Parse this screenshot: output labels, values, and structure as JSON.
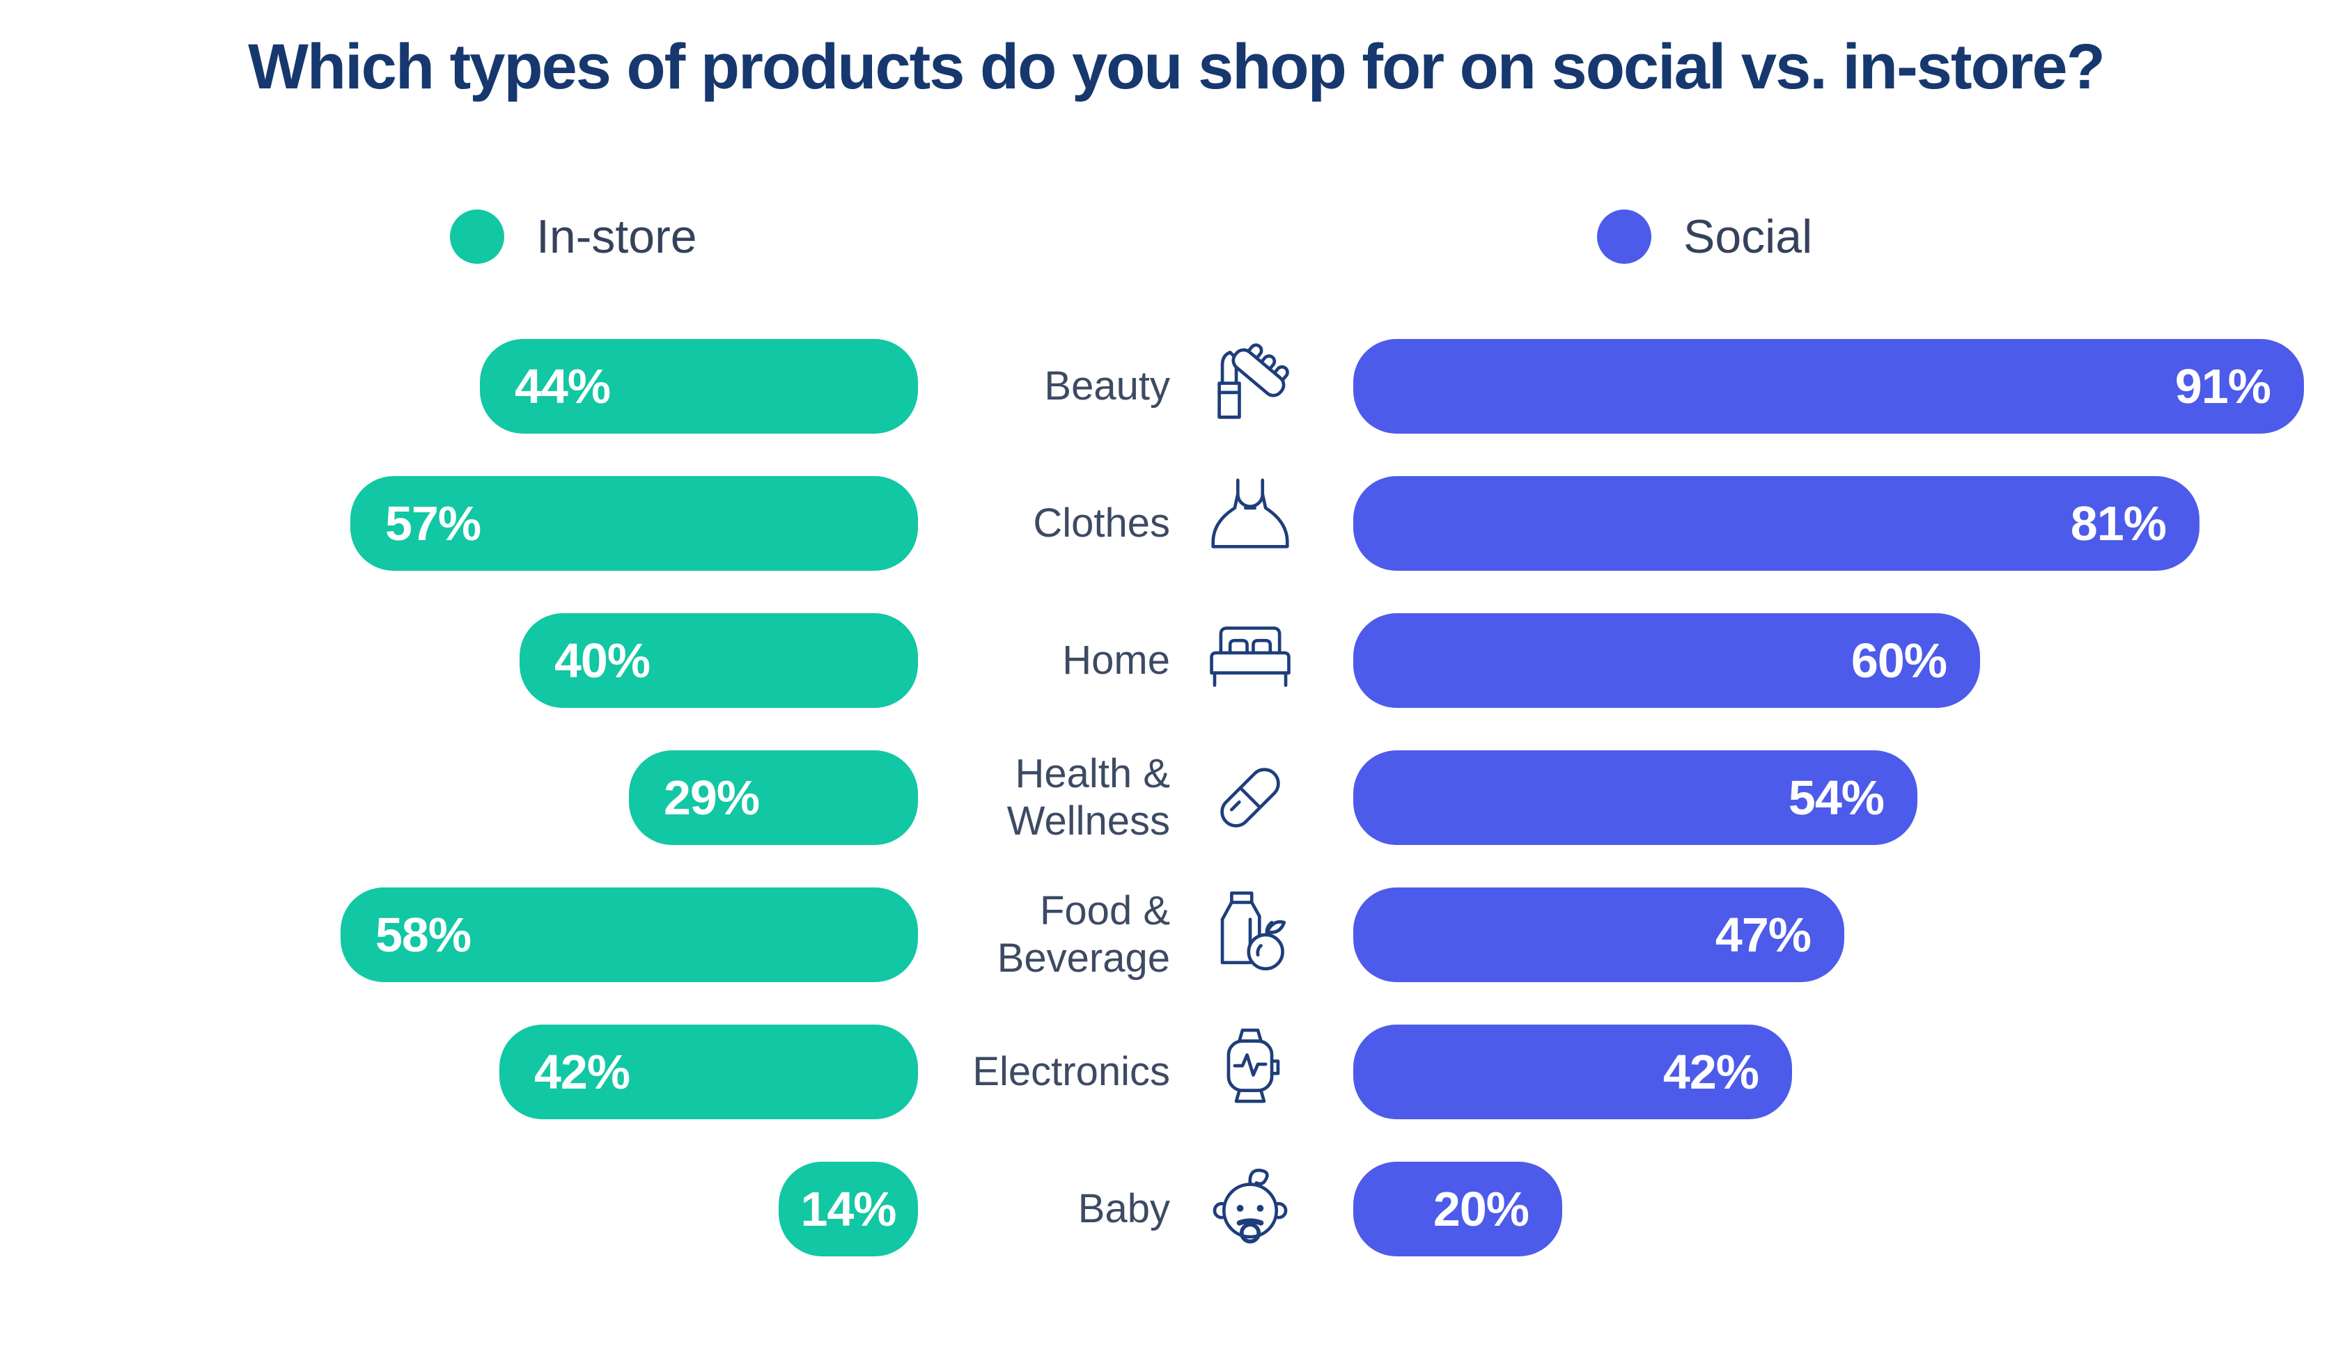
{
  "title": "Which types of products do you shop for on social vs. in-store?",
  "legend": {
    "instore": {
      "label": "In-store",
      "color": "#12C7A3"
    },
    "social": {
      "label": "Social",
      "color": "#4D5BEA"
    }
  },
  "rows": [
    {
      "category": "Beauty",
      "icon": "lipstick-and-comb",
      "instore_label": "44%",
      "social_label": "91%"
    },
    {
      "category": "Clothes",
      "icon": "dress",
      "instore_label": "57%",
      "social_label": "81%"
    },
    {
      "category": "Home",
      "icon": "bed",
      "instore_label": "40%",
      "social_label": "60%"
    },
    {
      "category": "Health & Wellness",
      "icon": "pill-capsule",
      "instore_label": "29%",
      "social_label": "54%"
    },
    {
      "category": "Food & Beverage",
      "icon": "milk-carton-and-apple",
      "instore_label": "58%",
      "social_label": "47%"
    },
    {
      "category": "Electronics",
      "icon": "smartwatch",
      "instore_label": "42%",
      "social_label": "42%"
    },
    {
      "category": "Baby",
      "icon": "baby-face",
      "instore_label": "14%",
      "social_label": "20%"
    }
  ],
  "chart_data": {
    "type": "bar",
    "orientation": "horizontal",
    "layout": "diverging-from-center-labels",
    "title": "Which types of products do you shop for on social vs. in-store?",
    "categories": [
      "Beauty",
      "Clothes",
      "Home",
      "Health & Wellness",
      "Food & Beverage",
      "Electronics",
      "Baby"
    ],
    "series": [
      {
        "key": "instore",
        "name": "In-store",
        "color": "#12C7A3",
        "values": [
          44,
          57,
          40,
          29,
          58,
          42,
          14
        ]
      },
      {
        "key": "social",
        "name": "Social",
        "color": "#4D5BEA",
        "values": [
          91,
          81,
          60,
          54,
          47,
          42,
          20
        ]
      }
    ],
    "value_format": "percent",
    "xlim": [
      0,
      100
    ],
    "grid": false,
    "legend_position": "top"
  },
  "colors": {
    "title": "#16386F",
    "category_label": "#3D4A63",
    "legend_label": "#35425B",
    "icon_stroke": "#1E3E7B",
    "bar_value_text": "#FFFFFF",
    "background": "#FFFFFF"
  }
}
